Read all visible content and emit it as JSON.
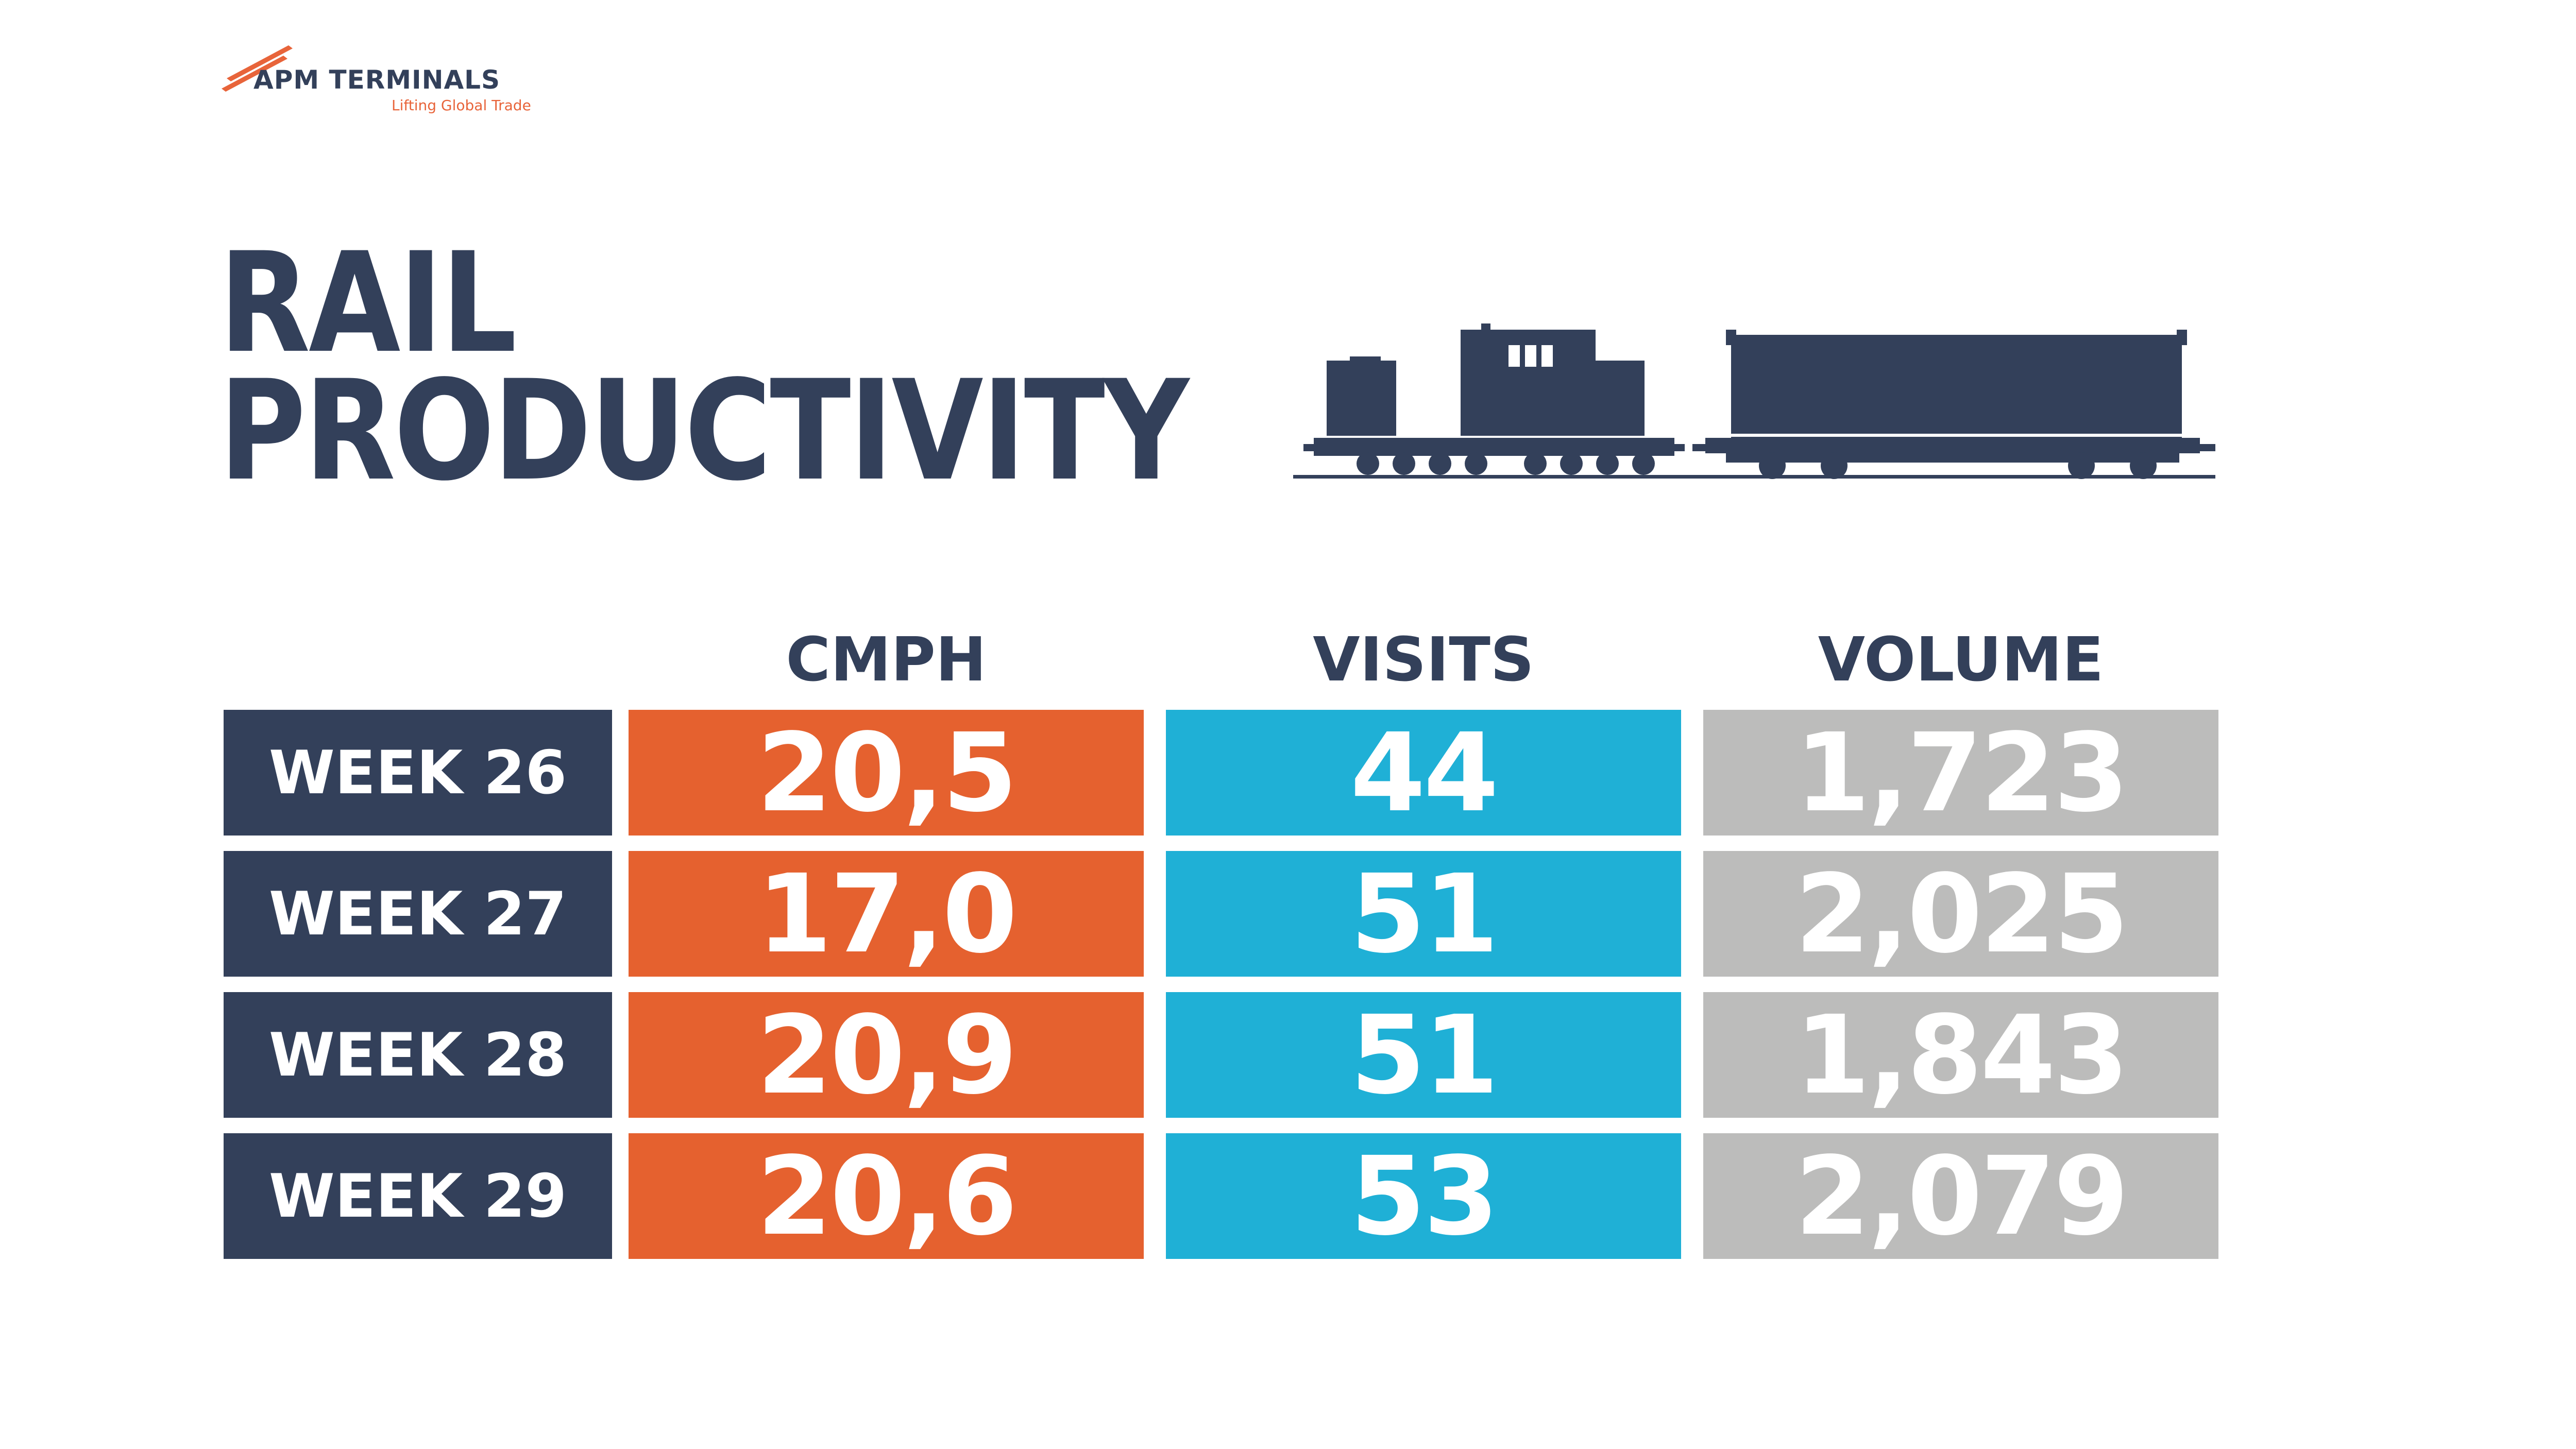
{
  "brand": {
    "name": "APM TERMINALS",
    "tagline": "Lifting Global Trade",
    "accent_color": "#e8643a"
  },
  "title": {
    "line1": "RAIL",
    "line2": "PRODUCTIVITY"
  },
  "illustration": "train-icon",
  "colors": {
    "navy": "#33405a",
    "cmph": "#e5612f",
    "visits": "#1fb0d6",
    "volume": "#bcbcbb"
  },
  "chart_data": {
    "type": "table",
    "title": "RAIL PRODUCTIVITY",
    "columns": [
      "CMPH",
      "VISITS",
      "VOLUME"
    ],
    "rows": [
      {
        "label": "WEEK 26",
        "values": [
          "20,5",
          "44",
          "1,723"
        ]
      },
      {
        "label": "WEEK 27",
        "values": [
          "17,0",
          "51",
          "2,025"
        ]
      },
      {
        "label": "WEEK 28",
        "values": [
          "20,9",
          "51",
          "1,843"
        ]
      },
      {
        "label": "WEEK 29",
        "values": [
          "20,6",
          "53",
          "2,079"
        ]
      }
    ]
  }
}
